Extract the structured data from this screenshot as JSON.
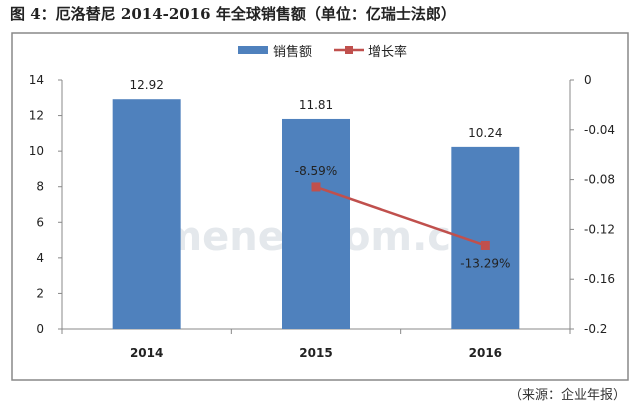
{
  "title": "图 4：厄洛替尼 2014-2016 年全球销售额（单位：亿瑞士法郎）",
  "source": "（来源：企业年报）",
  "watermark": "menet.com.cn",
  "chart_data": {
    "type": "bar+line",
    "categories": [
      "2014",
      "2015",
      "2016"
    ],
    "series": [
      {
        "name": "销售额",
        "type": "bar",
        "axis": "left",
        "values": [
          12.92,
          11.81,
          10.24
        ],
        "labels": [
          "12.92",
          "11.81",
          "10.24"
        ],
        "color": "#4f81bd"
      },
      {
        "name": "增长率",
        "type": "line",
        "axis": "right",
        "x": [
          "2015",
          "2016"
        ],
        "values": [
          -0.0859,
          -0.1329
        ],
        "labels": [
          "-8.59%",
          "-13.29%"
        ],
        "color": "#c0504d"
      }
    ],
    "left_axis": {
      "ylim": [
        0,
        14
      ],
      "ticks": [
        "0",
        "2",
        "4",
        "6",
        "8",
        "10",
        "12",
        "14"
      ]
    },
    "right_axis": {
      "ylim": [
        -0.2,
        0
      ],
      "ticks": [
        "-0.2",
        "-0.16",
        "-0.12",
        "-0.08",
        "-0.04",
        "0"
      ]
    },
    "legend": "top-center",
    "grid": false
  }
}
